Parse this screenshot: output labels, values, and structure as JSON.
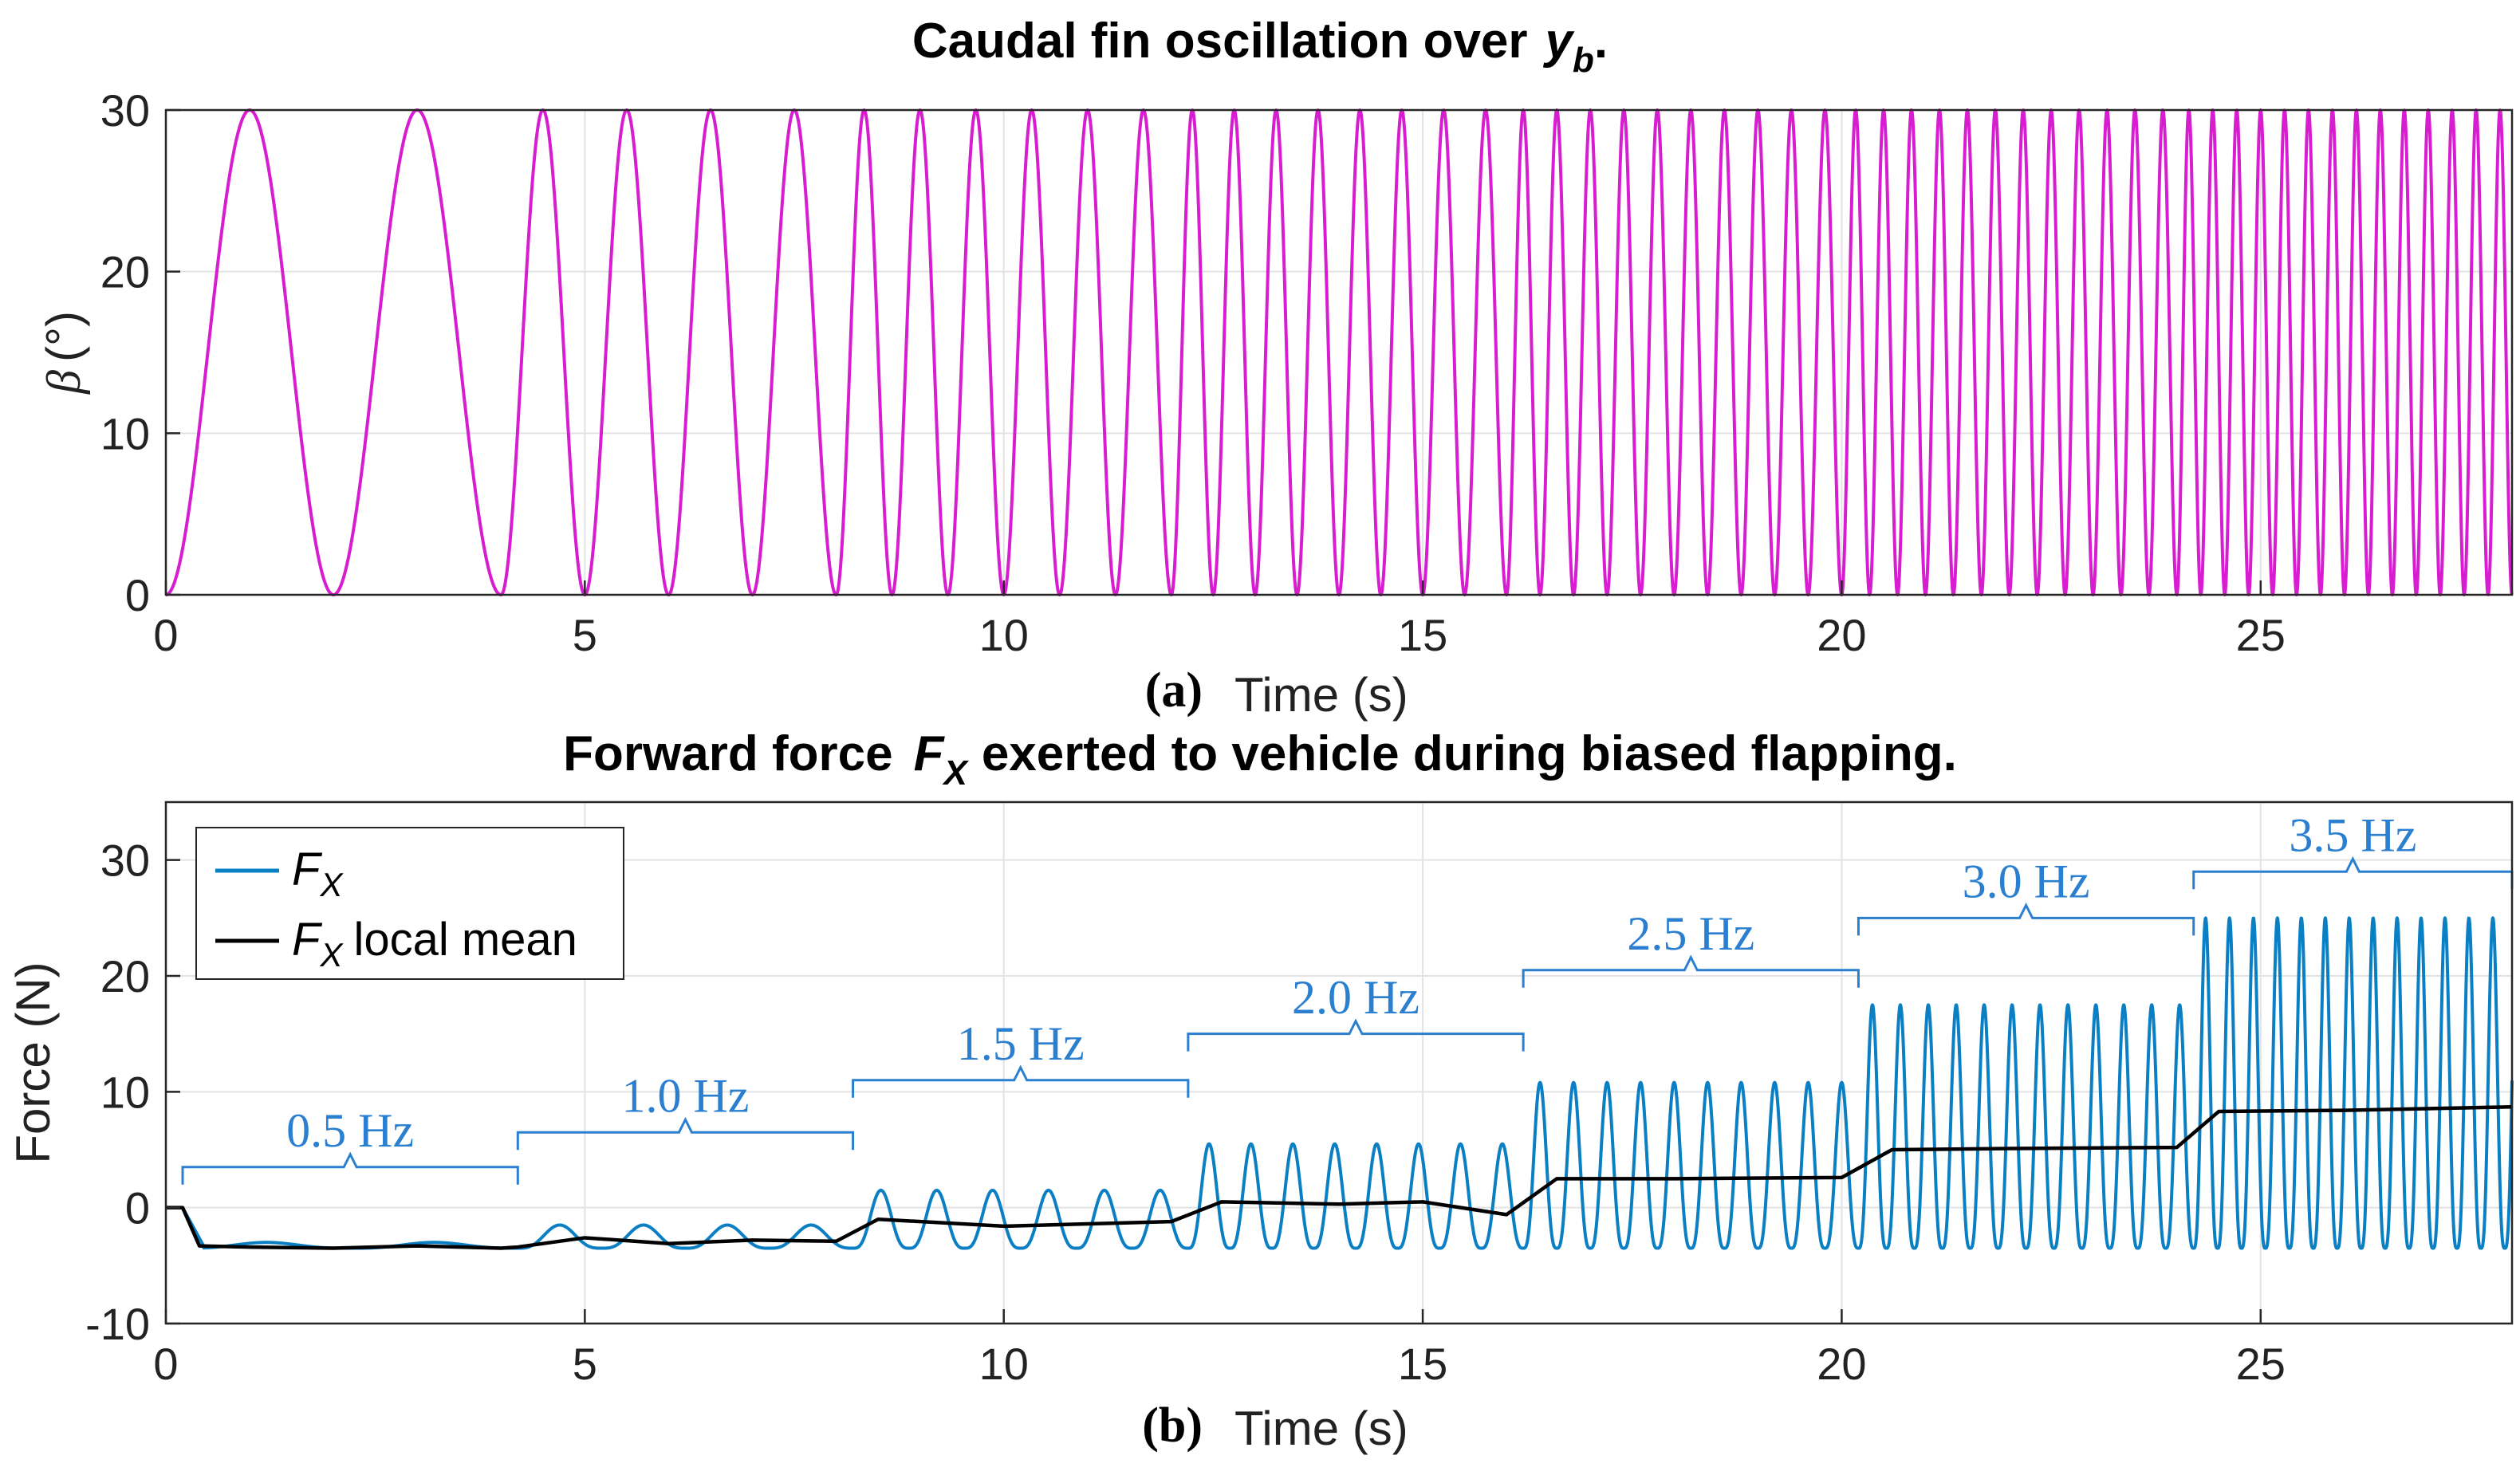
{
  "colors": {
    "beta": "#d81dd1",
    "force": "#0b7fc4",
    "mean": "#000000",
    "bracket": "#2a7fd0"
  },
  "chart_data": [
    {
      "type": "line",
      "panel": "(a)",
      "title": "Caudal fin oscillation over",
      "title_var": "y",
      "title_sub": "b",
      "title_end": ".",
      "xlabel": "Time (s)",
      "ylabel_symbol": "β",
      "ylabel_unit": "(°)",
      "xlim": [
        0,
        28
      ],
      "ylim": [
        0,
        30
      ],
      "xticks": [
        0,
        5,
        10,
        15,
        20,
        25
      ],
      "yticks": [
        0,
        10,
        20,
        30
      ],
      "grid": true,
      "series": [
        {
          "name": "β",
          "formula": "15*(1 - cos(2*pi*f*t))",
          "segments": [
            {
              "t_start": 0,
              "t_end": 4,
              "freq_hz": 0.5
            },
            {
              "t_start": 4,
              "t_end": 8,
              "freq_hz": 1.0
            },
            {
              "t_start": 8,
              "t_end": 12,
              "freq_hz": 1.5
            },
            {
              "t_start": 12,
              "t_end": 16,
              "freq_hz": 2.0
            },
            {
              "t_start": 16,
              "t_end": 20,
              "freq_hz": 2.5
            },
            {
              "t_start": 20,
              "t_end": 24,
              "freq_hz": 3.0
            },
            {
              "t_start": 24,
              "t_end": 28,
              "freq_hz": 3.5
            }
          ],
          "min": 0,
          "max": 30
        }
      ]
    },
    {
      "type": "line",
      "panel": "(b)",
      "title": "Forward force",
      "title_var": "F",
      "title_sub": "X",
      "title_end": "exerted to vehicle during biased flapping.",
      "xlabel": "Time (s)",
      "ylabel": "Force (N)",
      "xlim": [
        0,
        28
      ],
      "ylim": [
        -10,
        35
      ],
      "xticks": [
        0,
        5,
        10,
        15,
        20,
        25
      ],
      "yticks": [
        -10,
        0,
        10,
        20,
        30
      ],
      "grid": true,
      "legend": {
        "location": "top-left",
        "entries": [
          {
            "var": "F",
            "sub": "X",
            "suffix": ""
          },
          {
            "var": "F",
            "sub": "X",
            "suffix": "local mean"
          }
        ]
      },
      "series": [
        {
          "name": "F_X",
          "segments": [
            {
              "t_start": 0.2,
              "t_end": 4.2,
              "freq_hz": 0.5,
              "min": -3.5,
              "max": -3.0
            },
            {
              "t_start": 4.2,
              "t_end": 8.2,
              "freq_hz": 1.0,
              "min": -3.5,
              "max": -1.5
            },
            {
              "t_start": 8.2,
              "t_end": 12.2,
              "freq_hz": 1.5,
              "min": -3.5,
              "max": 1.5
            },
            {
              "t_start": 12.2,
              "t_end": 16.2,
              "freq_hz": 2.0,
              "min": -3.5,
              "max": 5.5
            },
            {
              "t_start": 16.2,
              "t_end": 20.2,
              "freq_hz": 2.5,
              "min": -3.5,
              "max": 10.8
            },
            {
              "t_start": 20.2,
              "t_end": 24.2,
              "freq_hz": 3.0,
              "min": -3.5,
              "max": 17.5
            },
            {
              "t_start": 24.2,
              "t_end": 28,
              "freq_hz": 3.5,
              "min": -3.5,
              "max": 25.0
            }
          ]
        },
        {
          "name": "F_X local mean",
          "points": [
            [
              0,
              0
            ],
            [
              0.2,
              0
            ],
            [
              0.4,
              -3.3
            ],
            [
              1,
              -3.4
            ],
            [
              2,
              -3.5
            ],
            [
              3,
              -3.3
            ],
            [
              4,
              -3.5
            ],
            [
              4.2,
              -3.4
            ],
            [
              5,
              -2.6
            ],
            [
              6,
              -3.1
            ],
            [
              7,
              -2.8
            ],
            [
              8,
              -2.9
            ],
            [
              8.5,
              -1.0
            ],
            [
              10,
              -1.6
            ],
            [
              11,
              -1.4
            ],
            [
              12,
              -1.2
            ],
            [
              12.6,
              0.5
            ],
            [
              14,
              0.3
            ],
            [
              15,
              0.5
            ],
            [
              16,
              -0.6
            ],
            [
              16.6,
              2.5
            ],
            [
              18,
              2.5
            ],
            [
              20,
              2.6
            ],
            [
              20.6,
              5.0
            ],
            [
              22,
              5.1
            ],
            [
              24,
              5.2
            ],
            [
              24.5,
              8.3
            ],
            [
              26,
              8.4
            ],
            [
              28,
              8.7
            ]
          ]
        }
      ],
      "annotations": [
        {
          "label": "0.5 Hz",
          "t_start": 0.2,
          "t_end": 4.2,
          "bracket_y": 3.5,
          "text_y": 6.5
        },
        {
          "label": "1.0 Hz",
          "t_start": 4.2,
          "t_end": 8.2,
          "bracket_y": 6.5,
          "text_y": 9.5
        },
        {
          "label": "1.5 Hz",
          "t_start": 8.2,
          "t_end": 12.2,
          "bracket_y": 11.0,
          "text_y": 14.0
        },
        {
          "label": "2.0 Hz",
          "t_start": 12.2,
          "t_end": 16.2,
          "bracket_y": 15.0,
          "text_y": 18.0
        },
        {
          "label": "2.5 Hz",
          "t_start": 16.2,
          "t_end": 20.2,
          "bracket_y": 20.5,
          "text_y": 23.5
        },
        {
          "label": "3.0 Hz",
          "t_start": 20.2,
          "t_end": 24.2,
          "bracket_y": 25.0,
          "text_y": 28.0
        },
        {
          "label": "3.5 Hz",
          "t_start": 24.2,
          "t_end": 28.0,
          "bracket_y": 29.0,
          "text_y": 32.0
        }
      ]
    }
  ]
}
